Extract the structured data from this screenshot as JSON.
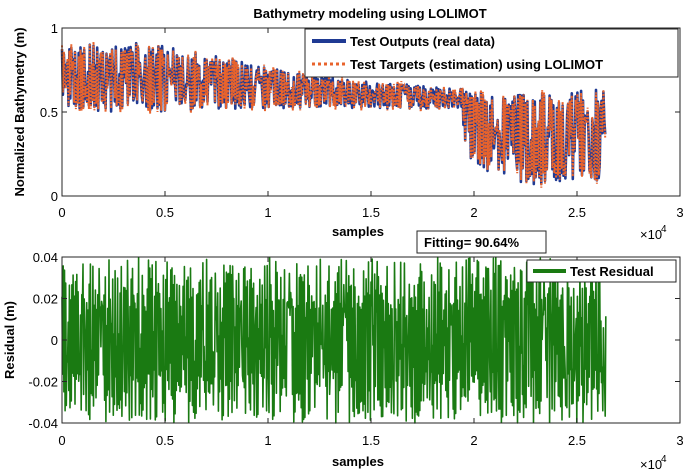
{
  "chart_data": [
    {
      "type": "line",
      "title": "Bathymetry modeling using LOLIMOT",
      "xlabel": "samples",
      "ylabel": "Normalized Bathymetry (m)",
      "xlim": [
        0,
        30000
      ],
      "ylim": [
        0,
        1
      ],
      "x_exponent_label": "×10",
      "x_exponent_power": "4",
      "xticks": [
        0,
        5000,
        10000,
        15000,
        20000,
        25000,
        30000
      ],
      "xtick_labels": [
        "0",
        "0.5",
        "1",
        "1.5",
        "2",
        "2.5",
        "3"
      ],
      "yticks": [
        0,
        0.5,
        1
      ],
      "ytick_labels": [
        "0",
        "0.5",
        "1"
      ],
      "n_samples": 26400,
      "legend_position": "top-right",
      "series": [
        {
          "name": "Test Outputs (real data)",
          "color": "#1f3a93",
          "style": "solid",
          "envelope": [
            {
              "x": 0,
              "lo": 0.52,
              "hi": 0.88
            },
            {
              "x": 2500,
              "lo": 0.5,
              "hi": 0.92
            },
            {
              "x": 5000,
              "lo": 0.5,
              "hi": 0.9
            },
            {
              "x": 7500,
              "lo": 0.52,
              "hi": 0.84
            },
            {
              "x": 10000,
              "lo": 0.52,
              "hi": 0.76
            },
            {
              "x": 12500,
              "lo": 0.53,
              "hi": 0.72
            },
            {
              "x": 15000,
              "lo": 0.52,
              "hi": 0.68
            },
            {
              "x": 17500,
              "lo": 0.52,
              "hi": 0.66
            },
            {
              "x": 19400,
              "lo": 0.52,
              "hi": 0.64
            },
            {
              "x": 19600,
              "lo": 0.25,
              "hi": 0.62
            },
            {
              "x": 20500,
              "lo": 0.15,
              "hi": 0.62
            },
            {
              "x": 22500,
              "lo": 0.07,
              "hi": 0.62
            },
            {
              "x": 24500,
              "lo": 0.06,
              "hi": 0.62
            },
            {
              "x": 26400,
              "lo": 0.05,
              "hi": 0.66
            }
          ]
        },
        {
          "name": "Test Targets (estimation) using LOLIMOT",
          "color": "#e8632c",
          "style": "dotted",
          "envelope": "tracks Test Outputs (real data)"
        }
      ]
    },
    {
      "type": "line",
      "title": "",
      "xlabel": "samples",
      "ylabel": "Residual (m)",
      "xlim": [
        0,
        30000
      ],
      "ylim": [
        -0.04,
        0.04
      ],
      "x_exponent_label": "×10",
      "x_exponent_power": "4",
      "xticks": [
        0,
        5000,
        10000,
        15000,
        20000,
        25000,
        30000
      ],
      "xtick_labels": [
        "0",
        "0.5",
        "1",
        "1.5",
        "2",
        "2.5",
        "3"
      ],
      "yticks": [
        -0.04,
        -0.02,
        0,
        0.02,
        0.04
      ],
      "ytick_labels": [
        "-0.04",
        "-0.02",
        "0",
        "0.02",
        "0.04"
      ],
      "n_samples": 26400,
      "legend_position": "top-right",
      "annotation": "Fitting= 90.64%",
      "series": [
        {
          "name": "Test Residual",
          "color": "#1a7a12",
          "style": "solid",
          "envelope": [
            {
              "x": 0,
              "amp": 0.04
            },
            {
              "x": 13500,
              "amp": 0.04
            },
            {
              "x": 26400,
              "amp": 0.04
            }
          ]
        }
      ]
    }
  ]
}
